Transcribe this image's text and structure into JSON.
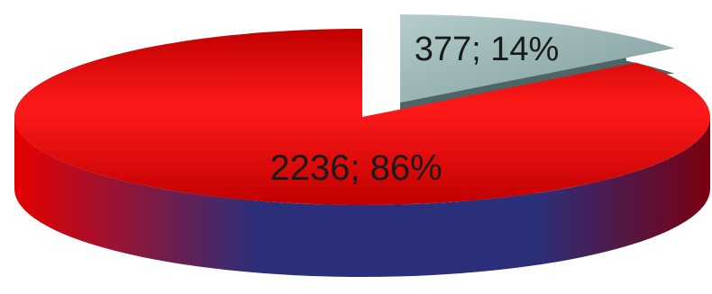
{
  "chart_data": {
    "type": "pie",
    "style": "3d-exploded",
    "title": "",
    "slices": [
      {
        "value": 2236,
        "percent": 86,
        "label": "2236; 86%"
      },
      {
        "value": 377,
        "percent": 14,
        "label": "377; 14%"
      }
    ]
  },
  "colors": {
    "slice_large_top_light": "#ff1a1a",
    "slice_large_top_dark": "#c00000",
    "slice_large_side_red": "#e60000",
    "slice_large_side_navy": "#2b2f7a",
    "slice_large_side_end": "#7a0010",
    "slice_small_top_light": "#b4cccc",
    "slice_small_top_dark": "#7f9c9c",
    "slice_small_side": "#4f6464",
    "label_text": "#1a1a1a"
  }
}
